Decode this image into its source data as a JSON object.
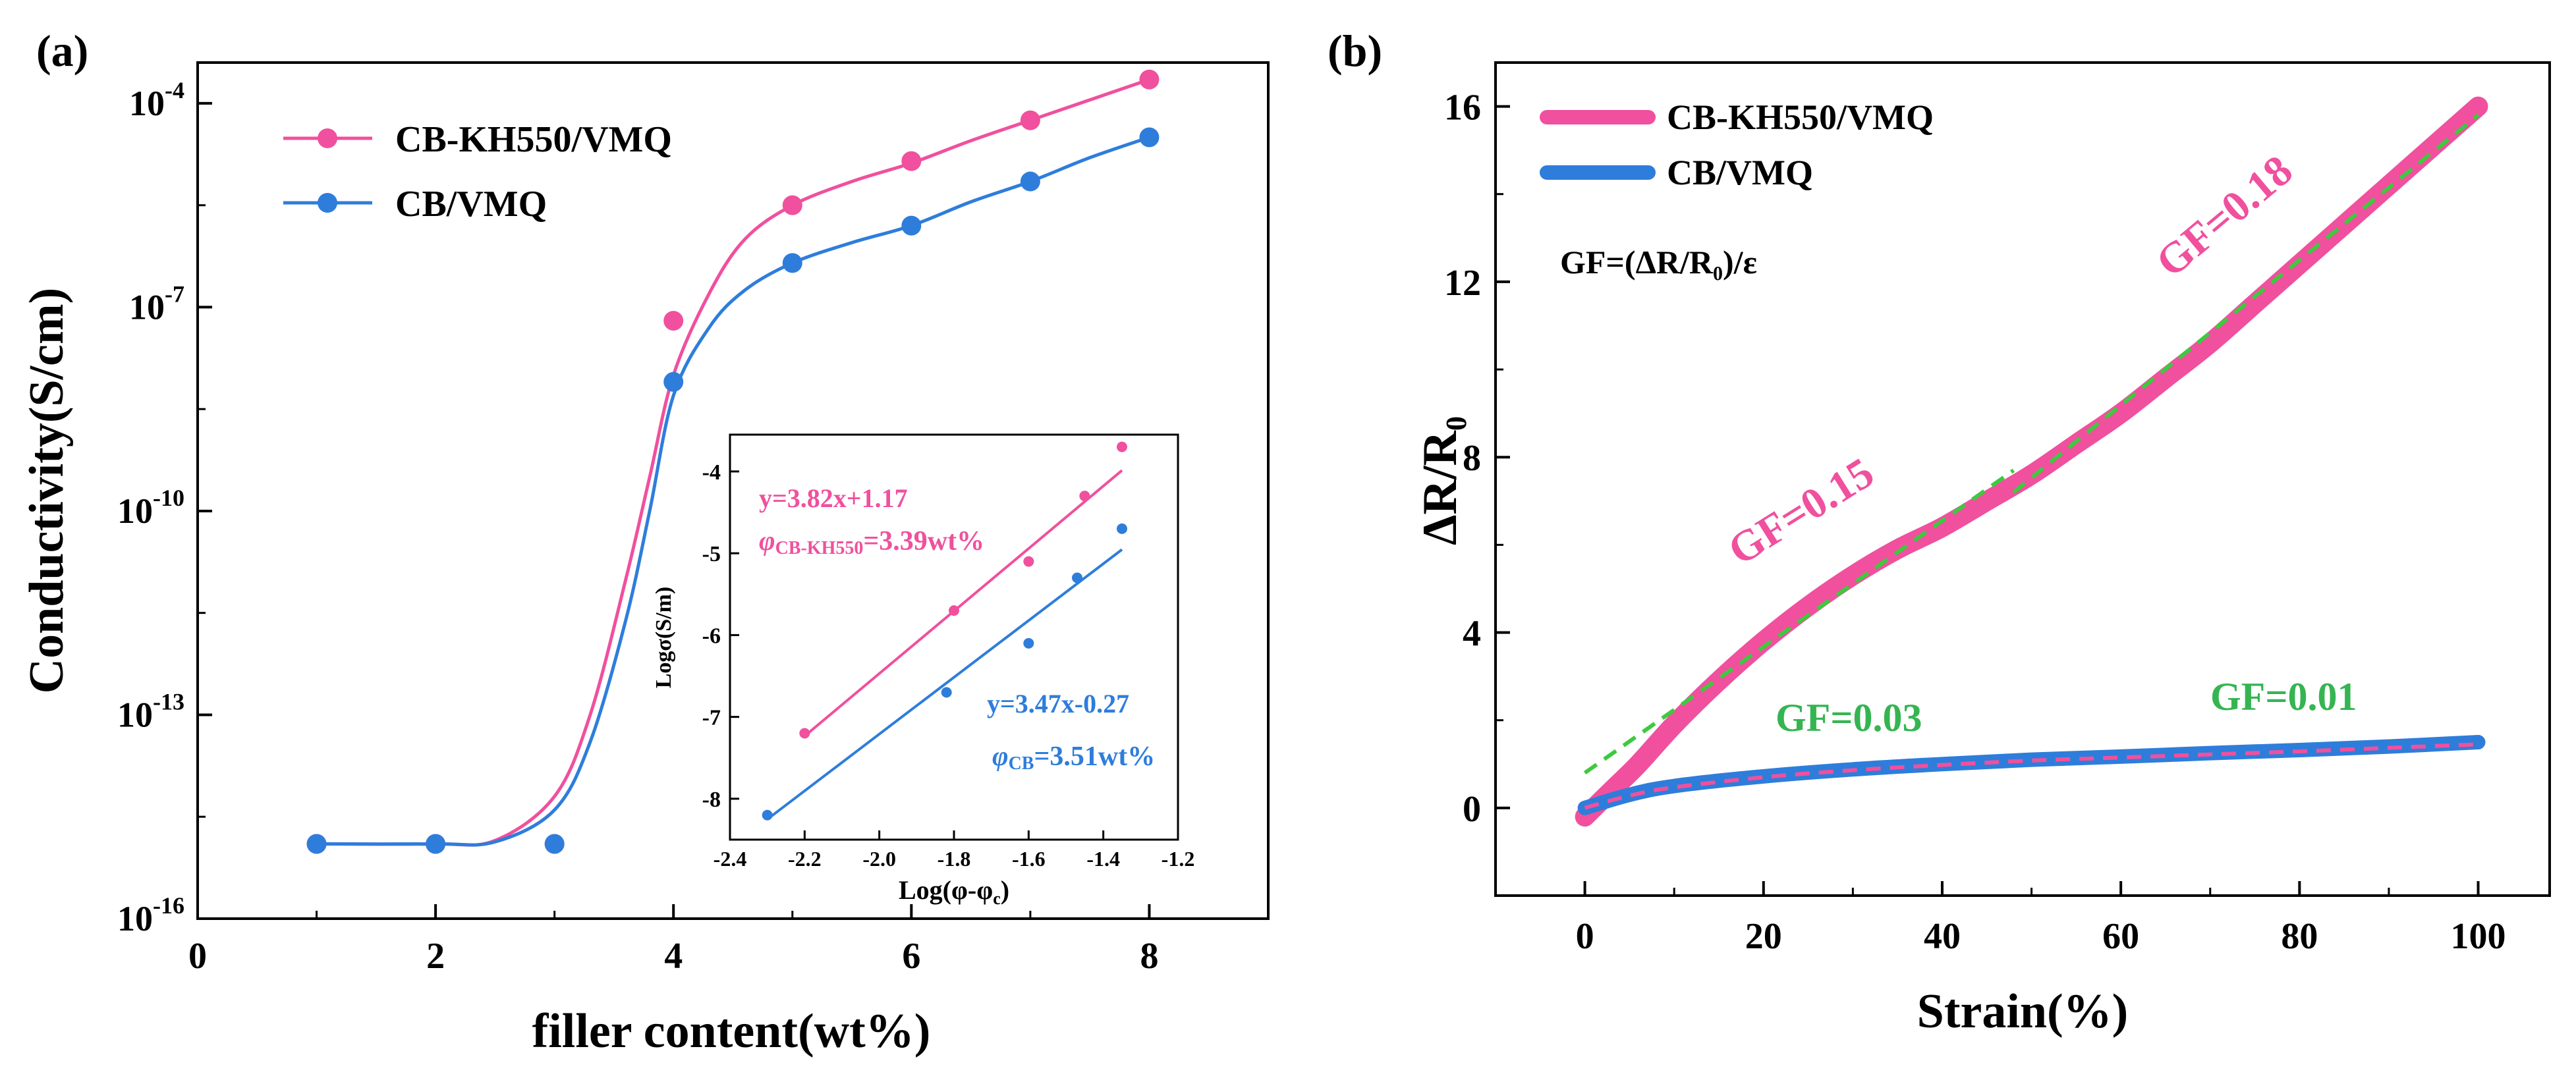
{
  "chart_data": [
    {
      "panel_label": "(a)",
      "type": "scatter",
      "xlabel": "filler content(wt%)",
      "ylabel": "Conductivity(S/cm)",
      "xlim": [
        0,
        9
      ],
      "ylim_log10": [
        -16,
        -3.4
      ],
      "yscale": "log",
      "x_ticks": [
        0,
        2,
        4,
        6,
        8
      ],
      "y_ticks_log10": [
        -16,
        -13,
        -10,
        -7,
        -4
      ],
      "tick_base": "10",
      "legend": {
        "placement": "top-left",
        "entries": [
          "CB-KH550/VMQ",
          "CB/VMQ"
        ]
      },
      "series": [
        {
          "name": "CB-KH550/VMQ",
          "color": "#f0509e",
          "x": [
            1,
            2,
            3,
            4,
            5,
            6,
            7,
            8
          ],
          "log10_y": [
            -14.9,
            -14.9,
            -14.9,
            -7.2,
            -5.5,
            -4.85,
            -4.25,
            -3.65
          ],
          "curve_x": [
            1,
            2,
            2.5,
            3,
            3.3,
            3.6,
            3.8,
            4,
            4.3,
            4.6,
            5,
            5.5,
            6,
            6.5,
            7,
            7.5,
            8
          ],
          "curve_log10_y": [
            -14.9,
            -14.9,
            -14.85,
            -14.2,
            -13.0,
            -11.0,
            -9.5,
            -8.0,
            -6.8,
            -6.0,
            -5.5,
            -5.15,
            -4.88,
            -4.55,
            -4.25,
            -3.95,
            -3.65
          ]
        },
        {
          "name": "CB/VMQ",
          "color": "#2e7ddb",
          "x": [
            1,
            2,
            3,
            4,
            5,
            6,
            7,
            8
          ],
          "log10_y": [
            -14.9,
            -14.9,
            -14.9,
            -8.1,
            -6.35,
            -5.8,
            -5.15,
            -4.5
          ],
          "curve_x": [
            1,
            2,
            2.5,
            3,
            3.3,
            3.6,
            3.8,
            4,
            4.3,
            4.6,
            5,
            5.5,
            6,
            6.5,
            7,
            7.5,
            8
          ],
          "curve_log10_y": [
            -14.9,
            -14.9,
            -14.87,
            -14.4,
            -13.4,
            -11.6,
            -10.0,
            -8.3,
            -7.3,
            -6.75,
            -6.35,
            -6.05,
            -5.8,
            -5.45,
            -5.15,
            -4.8,
            -4.5
          ]
        }
      ],
      "inset": {
        "type": "scatter",
        "xlabel": "Log(φ-φ",
        "xlabel_sub": "c",
        "xlabel_close": ")",
        "ylabel": "Logσ(S/m)",
        "xlim": [
          -2.4,
          -1.2
        ],
        "ylim": [
          -8.5,
          -3.55
        ],
        "x_ticks": [
          "-2.4",
          "-2.2",
          "-2.0",
          "-1.8",
          "-1.6",
          "-1.4",
          "-1.2"
        ],
        "y_ticks": [
          "-8",
          "-7",
          "-6",
          "-5",
          "-4"
        ],
        "series": [
          {
            "name": "CB-KH550/VMQ",
            "color": "#f0509e",
            "x": [
              -2.2,
              -1.8,
              -1.6,
              -1.45,
              -1.35
            ],
            "y": [
              -7.2,
              -5.7,
              -5.1,
              -4.3,
              -3.7
            ],
            "fit": {
              "slope": 3.82,
              "intercept": 1.17,
              "x_range": [
                -2.2,
                -1.35
              ]
            },
            "equation": "y=3.82x+1.17",
            "threshold_symbol": "φ",
            "threshold_subscript": "CB-KH550",
            "threshold_value": "=3.39wt%"
          },
          {
            "name": "CB/VMQ",
            "color": "#2e7ddb",
            "x": [
              -2.3,
              -1.82,
              -1.6,
              -1.47,
              -1.35
            ],
            "y": [
              -8.2,
              -6.7,
              -6.1,
              -5.3,
              -4.7
            ],
            "fit": {
              "slope": 3.47,
              "intercept": -0.27,
              "x_range": [
                -2.3,
                -1.35
              ]
            },
            "equation": "y=3.47x-0.27",
            "threshold_symbol": "φ",
            "threshold_subscript": "CB",
            "threshold_value": "=3.51wt%"
          }
        ]
      }
    },
    {
      "panel_label": "(b)",
      "type": "line",
      "xlabel": "Strain(%)",
      "ylabel": "ΔR/R₀",
      "xlim": [
        -10,
        108
      ],
      "ylim": [
        -2,
        17
      ],
      "x_ticks": [
        0,
        20,
        40,
        60,
        80,
        100
      ],
      "y_ticks": [
        0,
        4,
        8,
        12,
        16
      ],
      "legend": {
        "placement": "top-left",
        "entries": [
          "CB-KH550/VMQ",
          "CB/VMQ"
        ]
      },
      "formula": "GF=(ΔR/R₀)/ε",
      "series": [
        {
          "name": "CB-KH550/VMQ",
          "color": "#f0509e",
          "x": [
            0,
            3,
            6,
            10,
            15,
            20,
            25,
            30,
            35,
            40,
            45,
            50,
            55,
            60,
            65,
            70,
            75,
            80,
            85,
            90,
            95,
            100
          ],
          "y": [
            -0.2,
            0.4,
            1.0,
            1.9,
            2.9,
            3.8,
            4.6,
            5.3,
            5.9,
            6.4,
            7.0,
            7.6,
            8.3,
            9.0,
            9.8,
            10.6,
            11.5,
            12.4,
            13.3,
            14.2,
            15.1,
            16.0
          ]
        },
        {
          "name": "CB/VMQ",
          "color": "#2e7ddb",
          "x": [
            0,
            5,
            10,
            20,
            30,
            40,
            50,
            60,
            70,
            80,
            90,
            100
          ],
          "y": [
            0.0,
            0.3,
            0.5,
            0.72,
            0.88,
            1.0,
            1.1,
            1.17,
            1.25,
            1.32,
            1.4,
            1.5
          ]
        }
      ],
      "fits": [
        {
          "name": "fit-pink-low",
          "color": "#3ec93e",
          "style": "dashed",
          "x": [
            0,
            48
          ],
          "y": [
            0.8,
            7.7
          ]
        },
        {
          "name": "fit-pink-high",
          "color": "#3ec93e",
          "style": "dashed",
          "x": [
            48,
            100
          ],
          "y": [
            7.2,
            15.8
          ]
        },
        {
          "name": "fit-blue",
          "color": "#f0509e",
          "style": "dashed",
          "x": [
            0,
            5,
            10,
            20,
            30,
            40,
            50,
            60,
            70,
            80,
            90,
            100
          ],
          "y": [
            0.0,
            0.28,
            0.47,
            0.7,
            0.86,
            0.98,
            1.08,
            1.15,
            1.22,
            1.29,
            1.37,
            1.45
          ]
        }
      ],
      "annotations": [
        {
          "text": "GF=0.15",
          "color": "#f0509e"
        },
        {
          "text": "GF=0.18",
          "color": "#f0509e"
        },
        {
          "text": "GF=0.03",
          "color": "#35b552"
        },
        {
          "text": "GF=0.01",
          "color": "#35b552"
        }
      ]
    }
  ]
}
